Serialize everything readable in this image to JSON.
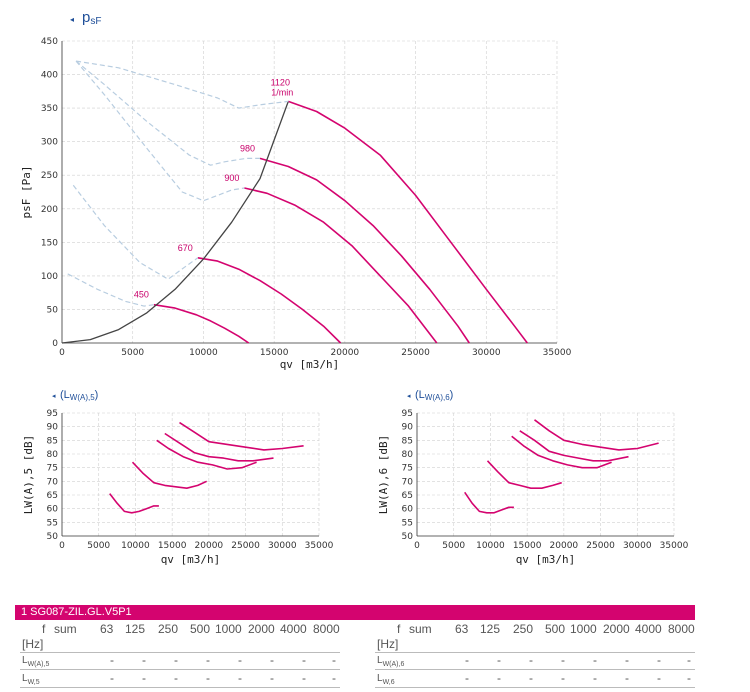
{
  "charts": [
    {
      "id": "main",
      "title_symbol": "p",
      "title_sub": "sF",
      "marker": "◂",
      "xlabel": "qv [m3/h]",
      "ylabel": "psF [Pa]",
      "xticks": [
        "0",
        "5000",
        "10000",
        "15000",
        "20000",
        "25000",
        "30000",
        "35000"
      ],
      "yticks": [
        "0",
        "50",
        "100",
        "150",
        "200",
        "250",
        "300",
        "350",
        "400",
        "450"
      ]
    },
    {
      "id": "lw5",
      "title_text": "(L",
      "title_sub": "W(A),5",
      "title_close": ")",
      "marker": "◂",
      "xlabel": "qv [m3/h]",
      "ylabel": "LW(A),5 [dB]",
      "xticks": [
        "0",
        "5000",
        "10000",
        "15000",
        "20000",
        "25000",
        "30000",
        "35000"
      ],
      "yticks": [
        "50",
        "55",
        "60",
        "65",
        "70",
        "75",
        "80",
        "85",
        "90",
        "95"
      ]
    },
    {
      "id": "lw6",
      "title_text": "(L",
      "title_sub": "W(A),6",
      "title_close": ")",
      "marker": "◂",
      "xlabel": "qv [m3/h]",
      "ylabel": "LW(A),6 [dB]",
      "xticks": [
        "0",
        "5000",
        "10000",
        "15000",
        "20000",
        "25000",
        "30000",
        "35000"
      ],
      "yticks": [
        "50",
        "55",
        "60",
        "65",
        "70",
        "75",
        "80",
        "85",
        "90",
        "95"
      ]
    }
  ],
  "chart_data": [
    {
      "type": "line",
      "title": "psF",
      "xlabel": "qv [m3/h]",
      "ylabel": "psF [Pa]",
      "xlim": [
        0,
        35000
      ],
      "ylim": [
        0,
        450
      ],
      "series": [
        {
          "name": "1120 1/min",
          "label": "1120\n1/min",
          "x": [
            16000,
            18000,
            20000,
            22500,
            25000,
            27500,
            30000,
            32000,
            32900
          ],
          "y": [
            360,
            345,
            320,
            280,
            220,
            150,
            80,
            25,
            0
          ]
        },
        {
          "name": "980",
          "label": "980",
          "x": [
            14000,
            16000,
            18000,
            20000,
            22000,
            24000,
            26000,
            28000,
            28800
          ],
          "y": [
            275,
            263,
            243,
            212,
            175,
            130,
            80,
            25,
            0
          ]
        },
        {
          "name": "900",
          "label": "900",
          "x": [
            12900,
            14500,
            16500,
            18500,
            20500,
            22500,
            24500,
            26500
          ],
          "y": [
            231,
            223,
            205,
            180,
            145,
            100,
            55,
            0
          ]
        },
        {
          "name": "670",
          "label": "670",
          "x": [
            9600,
            11000,
            12500,
            14000,
            15500,
            17000,
            18500,
            19700
          ],
          "y": [
            127,
            122,
            110,
            93,
            73,
            50,
            25,
            0
          ]
        },
        {
          "name": "450",
          "label": "450",
          "x": [
            6500,
            8000,
            9500,
            10500,
            11500,
            12500,
            13200
          ],
          "y": [
            57,
            52,
            42,
            33,
            22,
            10,
            0
          ]
        },
        {
          "name": "system curve",
          "x": [
            0,
            2000,
            4000,
            6000,
            8000,
            10000,
            12000,
            14000,
            16000
          ],
          "y": [
            0,
            5,
            20,
            45,
            80,
            125,
            180,
            245,
            360
          ]
        },
        {
          "name": "limit 1120",
          "x": [
            1000,
            4000,
            8000,
            11000,
            12500,
            14000,
            16000
          ],
          "y": [
            420,
            410,
            385,
            365,
            350,
            355,
            360
          ]
        },
        {
          "name": "limit 980",
          "x": [
            1000,
            3000,
            6000,
            9000,
            10500,
            11500,
            13000,
            14000
          ],
          "y": [
            420,
            385,
            330,
            280,
            265,
            270,
            275,
            275
          ]
        },
        {
          "name": "limit 900",
          "x": [
            1000,
            3000,
            6000,
            8500,
            10000,
            11000,
            12000,
            12900
          ],
          "y": [
            420,
            370,
            290,
            225,
            212,
            220,
            228,
            231
          ]
        },
        {
          "name": "limit 670",
          "x": [
            800,
            3000,
            5500,
            7500,
            8800,
            9600
          ],
          "y": [
            235,
            175,
            120,
            95,
            115,
            127
          ]
        },
        {
          "name": "limit 450",
          "x": [
            400,
            2500,
            4500,
            5800,
            6500
          ],
          "y": [
            103,
            80,
            62,
            55,
            57
          ]
        }
      ],
      "annotations": [
        "1120",
        "1/min",
        "980",
        "900",
        "670",
        "450"
      ]
    },
    {
      "type": "line",
      "title": "LW(A),5",
      "xlabel": "qv [m3/h]",
      "ylabel": "LW(A),5 [dB]",
      "xlim": [
        0,
        35000
      ],
      "ylim": [
        50,
        95
      ],
      "series": [
        {
          "name": "1120",
          "x": [
            16000,
            18000,
            20000,
            22500,
            25000,
            27500,
            30000,
            32900
          ],
          "y": [
            91.5,
            88,
            84.5,
            83.5,
            82.5,
            81.5,
            82,
            83
          ]
        },
        {
          "name": "980",
          "x": [
            14000,
            16000,
            18000,
            20000,
            22000,
            24000,
            26000,
            28800
          ],
          "y": [
            87.5,
            84,
            80.5,
            79,
            78.5,
            77.5,
            77.5,
            78.5
          ]
        },
        {
          "name": "900",
          "x": [
            12900,
            14500,
            16500,
            18500,
            20500,
            22500,
            24500,
            26500
          ],
          "y": [
            85,
            82,
            79,
            77,
            76,
            74.5,
            75,
            77
          ]
        },
        {
          "name": "670",
          "x": [
            9600,
            11000,
            12500,
            14000,
            15500,
            17000,
            18500,
            19700
          ],
          "y": [
            77,
            73,
            69.5,
            68.5,
            68,
            67.5,
            68.5,
            70
          ]
        },
        {
          "name": "450",
          "x": [
            6500,
            7500,
            8500,
            9500,
            10500,
            11500,
            12500,
            13200
          ],
          "y": [
            65.5,
            62,
            59,
            58.5,
            59,
            60,
            61,
            61
          ]
        }
      ]
    },
    {
      "type": "line",
      "title": "LW(A),6",
      "xlabel": "qv [m3/h]",
      "ylabel": "LW(A),6 [dB]",
      "xlim": [
        0,
        35000
      ],
      "ylim": [
        50,
        95
      ],
      "series": [
        {
          "name": "1120",
          "x": [
            16000,
            18000,
            20000,
            22500,
            25000,
            27500,
            30000,
            32900
          ],
          "y": [
            92.5,
            88.5,
            85,
            83.5,
            82.5,
            81.5,
            82,
            84
          ]
        },
        {
          "name": "980",
          "x": [
            14000,
            16000,
            18000,
            20000,
            22000,
            24000,
            26000,
            28800
          ],
          "y": [
            88.5,
            85,
            81,
            79.5,
            78.5,
            77.5,
            77.5,
            79
          ]
        },
        {
          "name": "900",
          "x": [
            12900,
            14500,
            16500,
            18500,
            20500,
            22500,
            24500,
            26500
          ],
          "y": [
            86.5,
            83,
            79.5,
            77.5,
            76,
            75,
            75,
            77
          ]
        },
        {
          "name": "670",
          "x": [
            9600,
            11000,
            12500,
            14000,
            15500,
            17000,
            18500,
            19700
          ],
          "y": [
            77.5,
            73.5,
            69.5,
            68.5,
            67.5,
            67.5,
            68.5,
            69.5
          ]
        },
        {
          "name": "450",
          "x": [
            6500,
            7500,
            8500,
            9500,
            10500,
            11500,
            12500,
            13200
          ],
          "y": [
            66,
            62,
            59,
            58.5,
            58.5,
            59.5,
            60.5,
            60.5
          ]
        }
      ]
    }
  ],
  "table": {
    "header": "1   SG087-ZIL.GL.V5P1",
    "columns": [
      "f",
      "sum",
      "63",
      "125",
      "250",
      "500",
      "1000",
      "2000",
      "4000",
      "8000"
    ],
    "unit": "[Hz]",
    "left_rows": [
      {
        "label": "L",
        "sub": "W(A),5",
        "values": [
          "-",
          "-",
          "-",
          "-",
          "-",
          "-",
          "-",
          "-"
        ]
      },
      {
        "label": "L",
        "sub": "W,5",
        "values": [
          "-",
          "-",
          "-",
          "-",
          "-",
          "-",
          "-",
          "-"
        ]
      }
    ],
    "right_rows": [
      {
        "label": "L",
        "sub": "W(A),6",
        "values": [
          "-",
          "-",
          "-",
          "-",
          "-",
          "-",
          "-",
          "-"
        ]
      },
      {
        "label": "L",
        "sub": "W,6",
        "values": [
          "-",
          "-",
          "-",
          "-",
          "-",
          "-",
          "-",
          "-"
        ]
      }
    ]
  }
}
